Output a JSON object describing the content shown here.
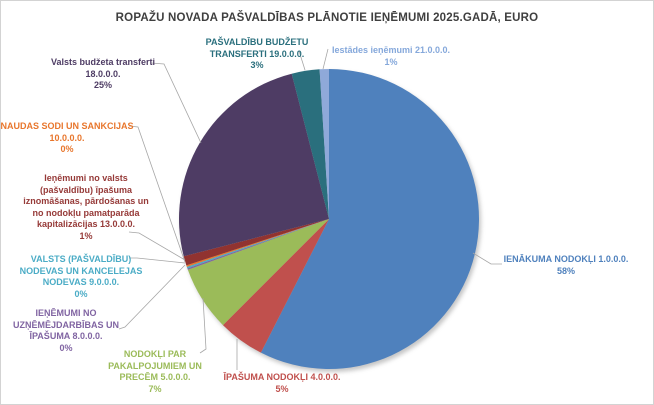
{
  "title": {
    "text": "ROPAŽU NOVADA PAŠVALDĪBAS PLĀNOTIE IEŅĒMUMI  2025.GADĀ, EURO",
    "color": "#3f3f3f"
  },
  "chart_data": {
    "type": "pie",
    "title": "ROPAŽU NOVADA PAŠVALDĪBAS PLĀNOTIE IEŅĒMUMI 2025.GADĀ, EURO",
    "unit": "EURO",
    "legend_position": "none",
    "label_style": "outside callouts with leader lines, percent shown",
    "slices": [
      {
        "label": "IENĀKUMA NODOKĻI",
        "code": "1.0.0.0.",
        "percent": 58,
        "color": "#4F81BD"
      },
      {
        "label": "ĪPAŠUMA NODOKĻI",
        "code": "4.0.0.0.",
        "percent": 5,
        "color": "#C0504D"
      },
      {
        "label": "NODOKĻI PAR PAKALPOJUMIEM UN PRECĒM",
        "code": "5.0.0.0.",
        "percent": 7,
        "color": "#9BBB59"
      },
      {
        "label": "IEŅĒMUMI NO UZŅĒMĒJDARBĪBAS UN ĪPAŠUMA",
        "code": "8.0.0.0.",
        "percent": 0,
        "color": "#8064A2"
      },
      {
        "label": "VALSTS (PAŠVALDĪBU) NODEVAS UN KANCELEJAS NODEVAS",
        "code": "9.0.0.0.",
        "percent": 0,
        "color": "#4BACC6"
      },
      {
        "label": "NAUDAS SODI UN SANKCIJAS",
        "code": "10.0.0.0.",
        "percent": 0,
        "color": "#E8762C"
      },
      {
        "label": "Ieņēmumi no valsts (pašvaldību) īpašuma iznomāšanas, pārdošanas un no nodokļu pamatparāda kapitalizācijas",
        "code": "13.0.0.0.",
        "percent": 1,
        "color": "#913330"
      },
      {
        "label": "Valsts budžeta transferti",
        "code": "18.0.0.0.",
        "percent": 25,
        "color": "#4E3C64"
      },
      {
        "label": "PAŠVALDĪBU BUDŽETU TRANSFERTI",
        "code": "19.0.0.0.",
        "percent": 3,
        "color": "#2A6F7D"
      },
      {
        "label": "Iestādes ieņēmumi",
        "code": "21.0.0.0.",
        "percent": 1,
        "color": "#8FA9D9"
      }
    ]
  },
  "callouts": {
    "t19": {
      "text": "PAŠVALDĪBU BUDŽETU\nTRANSFERTI 19.0.0.0.\n3%",
      "color": "#2A6F7D"
    },
    "t21": {
      "text": "Iestādes ieņēmumi 21.0.0.0.\n1%",
      "color": "#85A8DB"
    },
    "t18": {
      "text": "Valsts budžeta transferti\n18.0.0.0.\n25%",
      "color": "#4E3C64"
    },
    "t10": {
      "text": "NAUDAS SODI UN SANKCIJAS\n10.0.0.0.\n0%",
      "color": "#E8762C"
    },
    "t13": {
      "text": "Ieņēmumi no valsts\n(pašvaldību) īpašuma\niznomāšanas, pārdošanas un\nno nodokļu pamatparāda\nkapitalizācijas 13.0.0.0.\n1%",
      "color": "#963A38"
    },
    "t9": {
      "text": "VALSTS (PAŠVALDĪBU)\nNODEVAS UN KANCELEJAS\nNODEVAS 9.0.0.0.\n0%",
      "color": "#4BACC6"
    },
    "t8": {
      "text": "IEŅĒMUMI NO\nUZŅĒMĒJDARBĪBAS UN\nĪPAŠUMA 8.0.0.0.\n0%",
      "color": "#8064A2"
    },
    "t5": {
      "text": "NODOKĻI PAR\nPAKALPOJUMIEM UN\nPRECĒM 5.0.0.0.\n7%",
      "color": "#9BBB59"
    },
    "t4": {
      "text": "ĪPAŠUMA NODOKĻI 4.0.0.0.\n5%",
      "color": "#C0504D"
    },
    "t1": {
      "text": "IENĀKUMA NODOKĻI 1.0.0.0.\n58%",
      "color": "#4F81BD"
    }
  }
}
